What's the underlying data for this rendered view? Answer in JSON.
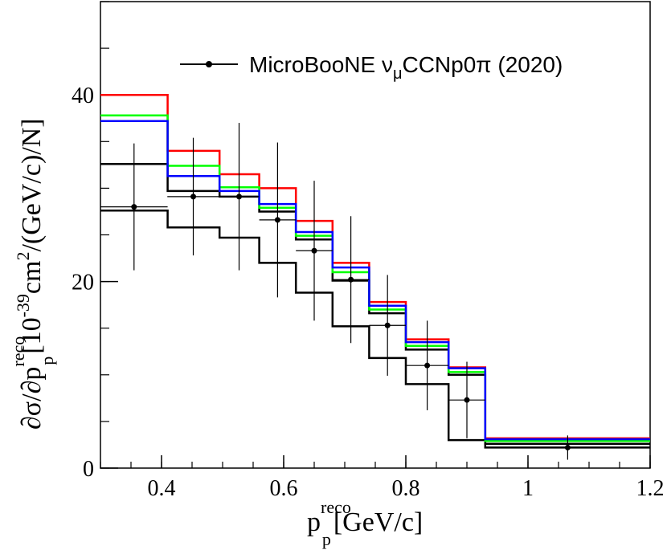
{
  "chart_data": {
    "type": "line",
    "xlabel": {
      "main": "p",
      "sup": "reco",
      "sub": "p",
      "unit": "[GeV/c]"
    },
    "ylabel": {
      "prefix": "∂σ/∂p",
      "sup": "reco",
      "sub": "p",
      "mid": "[10",
      "exp": "-39",
      "mid2": "cm",
      "exp2": "2",
      "unit": "/(GeV/c)/N]"
    },
    "xlim": [
      0.3,
      1.2
    ],
    "ylim": [
      0,
      50
    ],
    "xticks": [
      {
        "value": 0.4,
        "label": "0.4"
      },
      {
        "value": 0.6,
        "label": "0.6"
      },
      {
        "value": 0.8,
        "label": "0.8"
      },
      {
        "value": 1.0,
        "label": "1"
      },
      {
        "value": 1.2,
        "label": "1.2"
      }
    ],
    "yticks": [
      {
        "value": 0,
        "label": "0"
      },
      {
        "value": 20,
        "label": "20"
      },
      {
        "value": 40,
        "label": "40"
      }
    ],
    "grid": false,
    "legend": {
      "placement": "top-right",
      "entries": [
        {
          "series": "data",
          "text_main": "MicroBooNE ν",
          "text_sub": "μ",
          "text_rest": "CCNp0π (2020)"
        }
      ]
    },
    "bin_edges": [
      0.3,
      0.41,
      0.495,
      0.56,
      0.62,
      0.68,
      0.74,
      0.8,
      0.87,
      0.93,
      1.2
    ],
    "series": [
      {
        "key": "red",
        "color": "#ff0000",
        "values": [
          40.0,
          34.0,
          31.5,
          30.0,
          26.5,
          22.0,
          17.8,
          13.8,
          10.8,
          3.2
        ]
      },
      {
        "key": "green",
        "color": "#00ff00",
        "values": [
          37.8,
          32.4,
          30.1,
          27.9,
          24.9,
          21.0,
          17.0,
          13.1,
          10.3,
          2.9
        ]
      },
      {
        "key": "blue",
        "color": "#0000ff",
        "values": [
          37.2,
          31.3,
          29.7,
          28.3,
          25.3,
          21.5,
          17.4,
          13.5,
          10.7,
          3.1
        ]
      },
      {
        "key": "black_upper",
        "color": "#000000",
        "values": [
          32.6,
          29.7,
          29.1,
          27.5,
          24.5,
          20.1,
          16.6,
          12.7,
          10.0,
          2.6
        ]
      },
      {
        "key": "black_lower",
        "color": "#000000",
        "values": [
          27.6,
          25.8,
          24.7,
          22.0,
          18.8,
          15.2,
          11.8,
          9.0,
          3.0,
          2.2
        ]
      }
    ],
    "data_points": [
      {
        "x": 0.355,
        "y": 28.0,
        "xerr": 0.055,
        "yerr_low": 6.8,
        "yerr_high": 6.8
      },
      {
        "x": 0.452,
        "y": 29.1,
        "xerr": 0.0425,
        "yerr_low": 6.3,
        "yerr_high": 6.3
      },
      {
        "x": 0.527,
        "y": 29.1,
        "xerr": 0.0325,
        "yerr_low": 7.9,
        "yerr_high": 7.9
      },
      {
        "x": 0.59,
        "y": 26.6,
        "xerr": 0.03,
        "yerr_low": 8.3,
        "yerr_high": 8.3
      },
      {
        "x": 0.65,
        "y": 23.3,
        "xerr": 0.03,
        "yerr_low": 7.5,
        "yerr_high": 7.5
      },
      {
        "x": 0.71,
        "y": 20.2,
        "xerr": 0.03,
        "yerr_low": 6.8,
        "yerr_high": 6.8
      },
      {
        "x": 0.77,
        "y": 15.3,
        "xerr": 0.03,
        "yerr_low": 5.4,
        "yerr_high": 5.4
      },
      {
        "x": 0.835,
        "y": 11.0,
        "xerr": 0.035,
        "yerr_low": 4.8,
        "yerr_high": 4.8
      },
      {
        "x": 0.9,
        "y": 7.3,
        "xerr": 0.03,
        "yerr_low": 4.1,
        "yerr_high": 4.1
      },
      {
        "x": 1.065,
        "y": 2.2,
        "xerr": 0.135,
        "yerr_low": 1.3,
        "yerr_high": 1.3
      }
    ]
  }
}
